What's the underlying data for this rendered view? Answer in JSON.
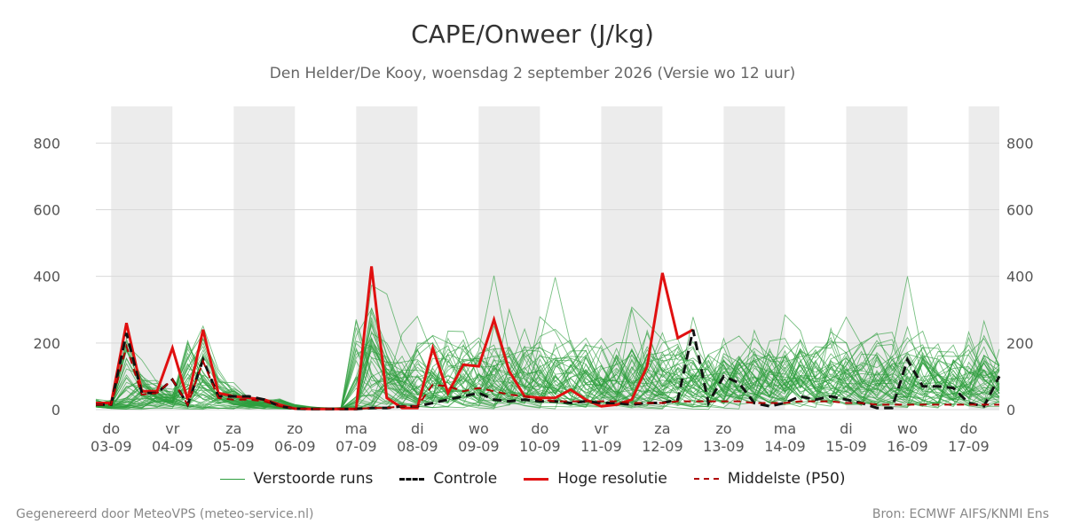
{
  "header": {
    "title": "CAPE/Onweer (J/kg)",
    "subtitle": "Den Helder/De Kooy, woensdag  2 september 2026 (Versie wo 12 uur)"
  },
  "footer": {
    "left": "Gegenereerd door MeteoVPS (meteo-service.nl)",
    "right": "Bron: ECMWF AIFS/KNMI Ens"
  },
  "colors": {
    "ensemble": "#2e9e3e",
    "control": "#111111",
    "high_res": "#e01010",
    "median": "#b00000",
    "shade": "#ececec",
    "grid": "#d9d9d9"
  },
  "legend": [
    {
      "label": "Verstoorde runs",
      "color": "#2e9e3e",
      "style": "thin"
    },
    {
      "label": "Controle",
      "color": "#111111",
      "style": "dashed-bold"
    },
    {
      "label": "Hoge resolutie",
      "color": "#e01010",
      "style": "solid-bold"
    },
    {
      "label": "Middelste (P50)",
      "color": "#b00000",
      "style": "dashed"
    }
  ],
  "chart_data": {
    "type": "line",
    "title": "CAPE/Onweer (J/kg)",
    "subtitle": "Den Helder/De Kooy, woensdag  2 september 2026 (Versie wo 12 uur)",
    "x_unit": "days from 03-09 00 UTC",
    "xlim": [
      -0.25,
      14.5
    ],
    "ylim": [
      0,
      910
    ],
    "yticks": [
      0,
      200,
      400,
      600,
      800
    ],
    "grid": "horizontal",
    "legend_position": "bottom",
    "x_tick_labels": [
      {
        "x": 0,
        "day": "do",
        "date": "03-09"
      },
      {
        "x": 1,
        "day": "vr",
        "date": "04-09"
      },
      {
        "x": 2,
        "day": "za",
        "date": "05-09"
      },
      {
        "x": 3,
        "day": "zo",
        "date": "06-09"
      },
      {
        "x": 4,
        "day": "ma",
        "date": "07-09"
      },
      {
        "x": 5,
        "day": "di",
        "date": "08-09"
      },
      {
        "x": 6,
        "day": "wo",
        "date": "09-09"
      },
      {
        "x": 7,
        "day": "do",
        "date": "10-09"
      },
      {
        "x": 8,
        "day": "vr",
        "date": "11-09"
      },
      {
        "x": 9,
        "day": "za",
        "date": "12-09"
      },
      {
        "x": 10,
        "day": "zo",
        "date": "13-09"
      },
      {
        "x": 11,
        "day": "ma",
        "date": "14-09"
      },
      {
        "x": 12,
        "day": "di",
        "date": "15-09"
      },
      {
        "x": 13,
        "day": "wo",
        "date": "16-09"
      },
      {
        "x": 14,
        "day": "do",
        "date": "17-09"
      }
    ],
    "night_shading": [
      [
        0,
        1
      ],
      [
        2,
        3
      ],
      [
        4,
        5
      ],
      [
        6,
        7
      ],
      [
        8,
        9
      ],
      [
        10,
        11
      ],
      [
        12,
        13
      ],
      [
        14,
        14.5
      ]
    ],
    "series": [
      {
        "name": "Hoge resolutie",
        "x": [
          -0.25,
          0,
          0.25,
          0.5,
          0.75,
          1,
          1.25,
          1.5,
          1.75,
          2,
          2.25,
          2.5,
          2.75,
          3,
          3.25,
          3.5,
          3.75,
          4,
          4.25,
          4.5,
          4.75,
          5,
          5.25,
          5.5,
          5.75,
          6,
          6.25,
          6.5,
          6.75,
          7,
          7.25,
          7.5,
          7.75,
          8,
          8.25,
          8.5,
          8.75,
          9,
          9.25,
          9.5
        ],
        "y": [
          20,
          20,
          260,
          55,
          55,
          185,
          30,
          240,
          50,
          40,
          35,
          30,
          15,
          3,
          2,
          2,
          2,
          2,
          430,
          35,
          5,
          5,
          185,
          50,
          135,
          130,
          270,
          115,
          40,
          35,
          35,
          60,
          30,
          10,
          15,
          30,
          130,
          410,
          215,
          240
        ]
      },
      {
        "name": "Controle",
        "x": [
          -0.25,
          0,
          0.25,
          0.5,
          0.75,
          1,
          1.25,
          1.5,
          1.75,
          2,
          2.25,
          2.5,
          2.75,
          3,
          3.25,
          3.5,
          3.75,
          4,
          4.25,
          4.5,
          4.75,
          5,
          5.25,
          5.5,
          5.75,
          6,
          6.25,
          6.5,
          6.75,
          7,
          7.25,
          7.5,
          7.75,
          8,
          8.25,
          8.5,
          8.75,
          9,
          9.25,
          9.5,
          9.75,
          10,
          10.25,
          10.5,
          10.75,
          11,
          11.25,
          11.5,
          11.75,
          12,
          12.25,
          12.5,
          12.75,
          13,
          13.25,
          13.5,
          13.75,
          14,
          14.25,
          14.5
        ],
        "y": [
          15,
          15,
          230,
          50,
          50,
          90,
          15,
          150,
          40,
          40,
          40,
          30,
          10,
          3,
          2,
          2,
          2,
          2,
          5,
          5,
          10,
          10,
          20,
          30,
          40,
          50,
          30,
          25,
          30,
          25,
          25,
          20,
          25,
          20,
          20,
          15,
          20,
          20,
          30,
          240,
          20,
          100,
          80,
          20,
          10,
          20,
          40,
          30,
          40,
          30,
          20,
          5,
          5,
          150,
          70,
          70,
          65,
          20,
          10,
          100
        ]
      },
      {
        "name": "Middelste (P50)",
        "x": [
          -0.25,
          0,
          0.25,
          0.5,
          0.75,
          1,
          1.25,
          1.5,
          1.75,
          2,
          2.25,
          2.5,
          2.75,
          3,
          3.25,
          3.5,
          3.75,
          4,
          4.25,
          4.5,
          4.75,
          5,
          5.25,
          5.5,
          5.75,
          6,
          6.25,
          6.5,
          6.75,
          7,
          7.25,
          7.5,
          7.75,
          8,
          8.25,
          8.5,
          8.75,
          9,
          9.25,
          9.5,
          9.75,
          10,
          10.25,
          10.5,
          10.75,
          11,
          11.25,
          11.5,
          11.75,
          12,
          12.25,
          12.5,
          12.75,
          13,
          13.25,
          13.5,
          13.75,
          14,
          14.25,
          14.5
        ],
        "y": [
          15,
          15,
          190,
          45,
          50,
          90,
          15,
          145,
          35,
          30,
          30,
          25,
          10,
          3,
          2,
          2,
          2,
          2,
          5,
          5,
          10,
          10,
          75,
          70,
          55,
          65,
          55,
          45,
          40,
          30,
          25,
          25,
          25,
          25,
          25,
          20,
          20,
          20,
          25,
          25,
          25,
          25,
          25,
          20,
          20,
          20,
          25,
          25,
          25,
          20,
          20,
          15,
          15,
          15,
          15,
          15,
          15,
          15,
          15,
          15
        ]
      }
    ],
    "perturbed_runs_note": "Verstoorde runs"
  }
}
